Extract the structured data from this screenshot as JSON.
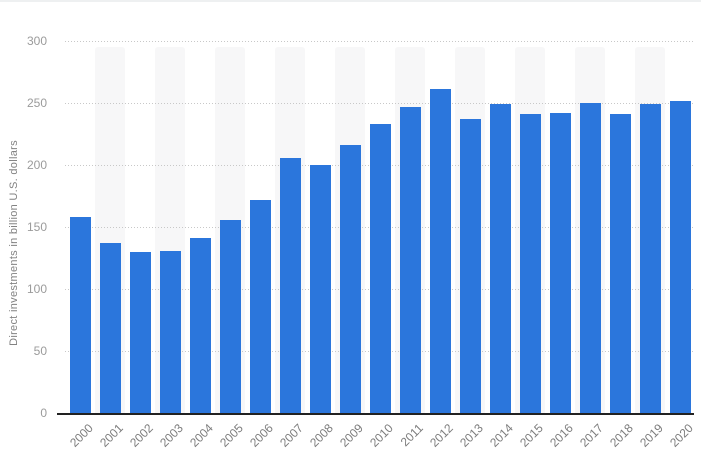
{
  "chart_data": {
    "type": "bar",
    "title": "",
    "xlabel": "",
    "ylabel": "Direct investments in billion U.S. dollars",
    "categories": [
      "2000",
      "2001",
      "2002",
      "2003",
      "2004",
      "2005",
      "2006",
      "2007",
      "2008",
      "2009",
      "2010",
      "2011",
      "2012",
      "2013",
      "2014",
      "2015",
      "2016",
      "2017",
      "2018",
      "2019",
      "2020"
    ],
    "values": [
      158,
      137,
      130,
      131,
      141,
      156,
      172,
      206,
      200,
      216,
      233,
      247,
      261,
      237,
      249,
      241,
      242,
      250,
      241,
      249,
      252
    ],
    "ylim": [
      0,
      300
    ],
    "yticks": [
      0,
      50,
      100,
      150,
      200,
      250,
      300
    ],
    "grid": "horizontal-dotted",
    "legend": "none",
    "bar_color": "#2b76dc",
    "stripe_color": "#f7f7f8",
    "gridline_color": "#c8c8c8",
    "axis_line_color": "#222222",
    "y_tick_color": "#9b9b9b",
    "x_tick_color": "#7c7c7c",
    "ylabel_color": "#828282"
  }
}
